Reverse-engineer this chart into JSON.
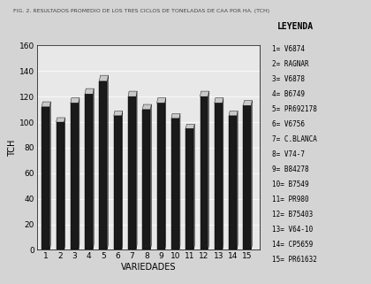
{
  "title": "FIG. 2. RESULTADOS PROMEDIO DE LOS TRES CICLOS DE TCH POR HA. (TCH)",
  "ylabel": "TCH",
  "xlabel": "VARIEDADES",
  "categories": [
    "1",
    "2",
    "3",
    "4",
    "5",
    "6",
    "7",
    "8",
    "9",
    "10",
    "11",
    "12",
    "13",
    "14",
    "15"
  ],
  "values": [
    112,
    100,
    115,
    122,
    132,
    105,
    120,
    110,
    115,
    103,
    95,
    120,
    115,
    105,
    113
  ],
  "bar_face_color": "#1a1a1a",
  "bar_top_color": "#c8c8c8",
  "bar_side_color": "#888888",
  "background_color": "#d4d4d4",
  "plot_bg_color": "#e8e8e8",
  "ylim": [
    0,
    160
  ],
  "yticks": [
    0,
    20,
    40,
    60,
    80,
    100,
    120,
    140,
    160
  ],
  "legend_title": "LEYENDA",
  "legend_entries": [
    "1= V6874",
    "2= RAGNAR",
    "3= V6878",
    "4= B6749",
    "5= PR692178",
    "6= V6756",
    "7= C.BLANCA",
    "8= V74-7",
    "9= B84278",
    "10= B7549",
    "11= PR980",
    "12= B75403",
    "13= V64-10",
    "14= CP5659",
    "15= PR61632"
  ]
}
